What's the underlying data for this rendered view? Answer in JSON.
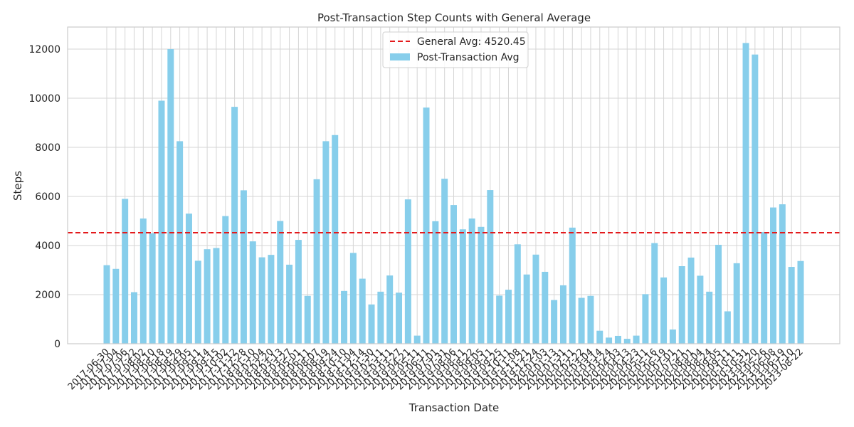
{
  "chart_data": {
    "type": "bar",
    "title": "Post-Transaction Step Counts with General Average",
    "x_label": "Transaction Date",
    "y_label": "Steps",
    "categories": [
      "2017-06-30",
      "2017-07-04",
      "2017-07-06",
      "2017-07-22",
      "2017-08-02",
      "2017-08-10",
      "2017-08-18",
      "2017-08-19",
      "2017-08-29",
      "2017-09-05",
      "2017-09-11",
      "2017-09-14",
      "2017-09-15",
      "2017-10-02",
      "2017-11-12",
      "2017-12-28",
      "2018-01-10",
      "2018-02-04",
      "2018-02-20",
      "2018-03-13",
      "2018-03-27",
      "2018-05-01",
      "2018-06-11",
      "2018-08-07",
      "2018-08-19",
      "2018-09-24",
      "2018-10-10",
      "2018-11-04",
      "2018-12-14",
      "2019-01-30",
      "2019-02-11",
      "2019-03-11",
      "2019-03-27",
      "2019-04-21",
      "2019-05-11",
      "2019-06-11",
      "2019-07-01",
      "2019-07-31",
      "2019-08-06",
      "2019-08-11",
      "2019-08-22",
      "2019-09-05",
      "2019-09-11",
      "2019-09-25",
      "2019-10-11",
      "2019-11-08",
      "2019-11-21",
      "2019-12-24",
      "2020-01-03",
      "2020-01-13",
      "2020-01-31",
      "2020-02-11",
      "2020-02-22",
      "2020-03-04",
      "2020-03-14",
      "2020-03-24",
      "2020-04-03",
      "2020-04-13",
      "2020-04-23",
      "2020-05-11",
      "2020-05-16",
      "2020-06-19",
      "2020-07-01",
      "2020-07-21",
      "2020-08-01",
      "2020-08-04",
      "2020-08-24",
      "2020-09-05",
      "2020-09-11",
      "2020-10-11",
      "2020-10-31",
      "2023-05-20",
      "2023-05-26",
      "2023-06-08",
      "2023-06-19",
      "2023-07-10",
      "2023-08-22"
    ],
    "series": [
      {
        "name": "Post-Transaction Avg",
        "color": "#87ceeb",
        "values": [
          3200,
          3050,
          5900,
          2100,
          5100,
          4500,
          9900,
          12000,
          8250,
          5300,
          3380,
          3850,
          3900,
          5200,
          9650,
          6250,
          4170,
          3520,
          3620,
          5000,
          3220,
          4230,
          1950,
          6700,
          8250,
          8500,
          2150,
          3700,
          2650,
          1600,
          2120,
          2780,
          2080,
          5880,
          330,
          9620,
          4990,
          6720,
          5650,
          4660,
          5100,
          4760,
          6260,
          1960,
          2200,
          4050,
          2820,
          3630,
          2930,
          1780,
          2380,
          4730,
          1870,
          1950,
          530,
          250,
          320,
          200,
          330,
          2020,
          4100,
          2700,
          580,
          3160,
          3510,
          2770,
          2120,
          4030,
          1320,
          3280,
          12250,
          11780,
          4550,
          5550,
          5680,
          3130,
          3370
        ]
      }
    ],
    "reference_line": {
      "label": "General Avg: 4520.45",
      "value": 4520.45,
      "color": "#e31a1c"
    },
    "ylim": [
      0,
      12900
    ],
    "yticks": [
      0,
      2000,
      4000,
      6000,
      8000,
      10000,
      12000
    ],
    "grid": true,
    "legend": "upper center"
  }
}
